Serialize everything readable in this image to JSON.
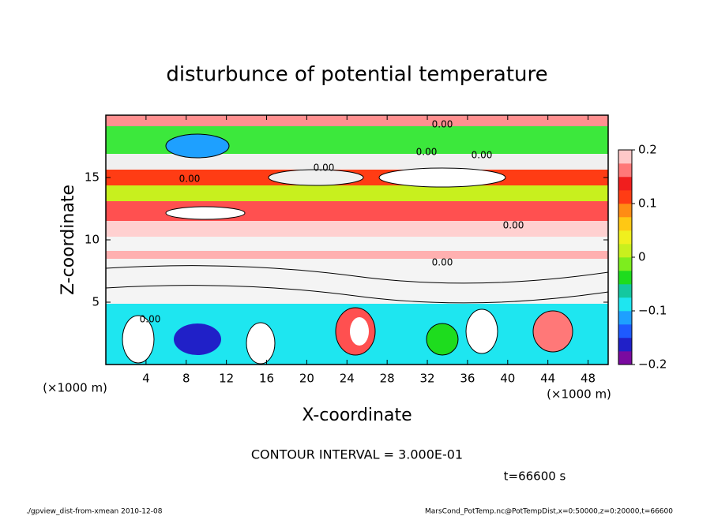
{
  "chart_data": {
    "type": "heatmap",
    "title": "disturbunce of potential temperature",
    "x_label": "X-coordinate",
    "y_label": "Z-coordinate",
    "x_unit": "(×1000 m)",
    "y_unit": "(×1000 m)",
    "xlim": [
      0,
      50
    ],
    "xticks": [
      4,
      8,
      12,
      16,
      20,
      24,
      28,
      32,
      36,
      40,
      44,
      48
    ],
    "ylim": [
      0,
      20
    ],
    "yticks": [
      5,
      10,
      15
    ],
    "clim": [
      -0.2,
      0.2
    ],
    "cticks": [
      {
        "value": -0.2,
        "label": "−0.2"
      },
      {
        "value": -0.1,
        "label": "−0.1"
      },
      0,
      0.1,
      0.2
    ],
    "colors": [
      "#7a0aa0",
      "#2020c8",
      "#1e5aff",
      "#1ea0ff",
      "#1ee6f0",
      "#14c8a0",
      "#1edc1e",
      "#7ded1e",
      "#c8f01e",
      "#f0f01e",
      "#ffc814",
      "#ff8c14",
      "#ff3c14",
      "#f01e1e",
      "#ff7878",
      "#ffc8c8"
    ],
    "contour_labels": [
      "0.00",
      "0.00",
      "0.00",
      "0.00",
      "0.00",
      "0.00",
      "0.00",
      "0.00"
    ],
    "annotations": [
      "CONTOUR INTERVAL = 3.000E-01",
      "t=66600 s"
    ],
    "footer_left": "./gpview_dist-from-xmean  2010-12-08",
    "footer_right": "MarsCond_PotTemp.nc@PotTempDist,x=0:50000,z=0:20000,t=66600"
  }
}
